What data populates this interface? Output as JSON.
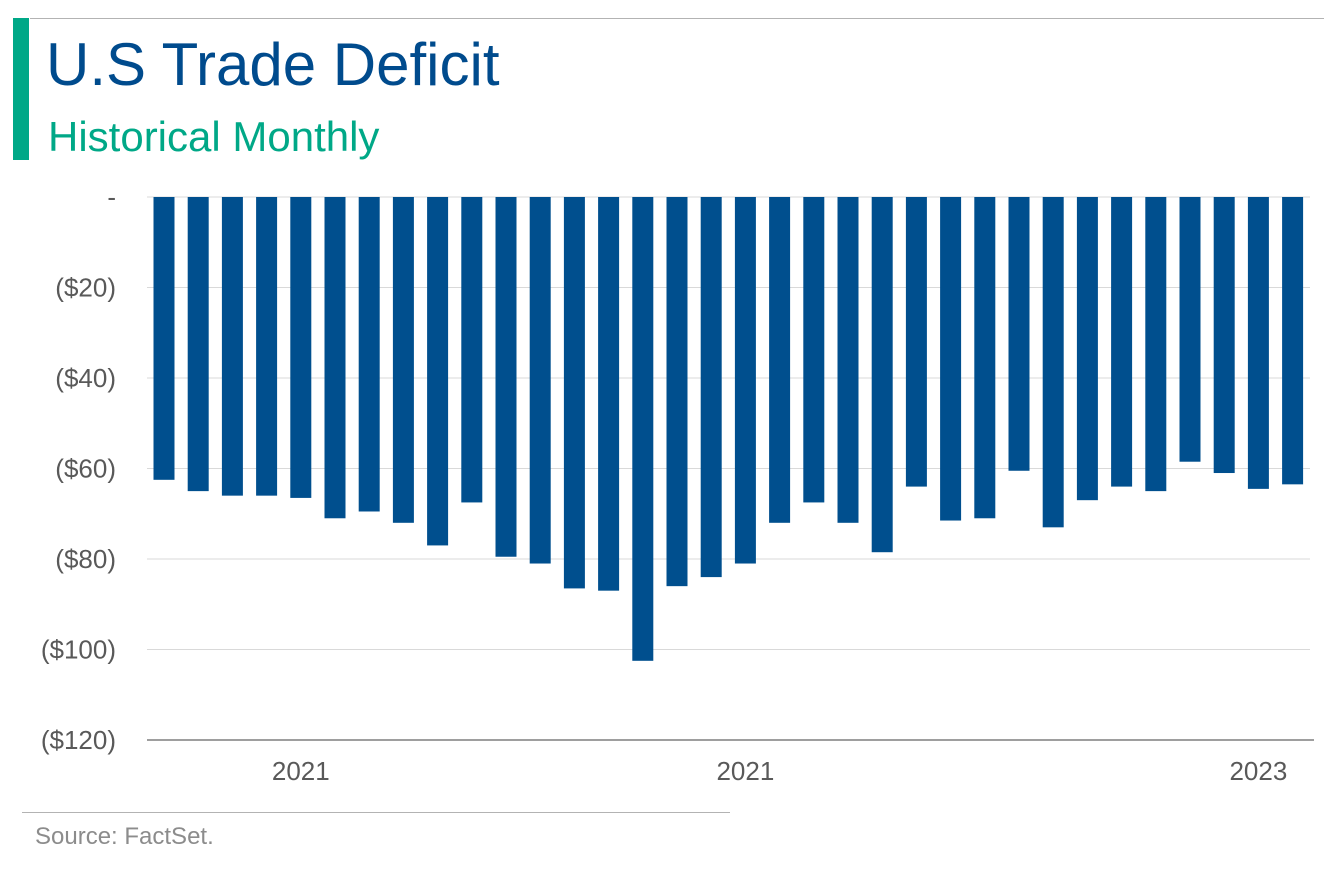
{
  "header": {
    "title": "U.S Trade Deficit",
    "subtitle": "Historical Monthly"
  },
  "footer": {
    "source": "Source: FactSet."
  },
  "colors": {
    "accent": "#00a887",
    "title": "#004b8d",
    "bar": "#004f8e",
    "grid": "#d9d9d9",
    "axis": "#7f7f7f",
    "tick_text": "#595959"
  },
  "chart_data": {
    "type": "bar",
    "title": "U.S Trade Deficit",
    "subtitle": "Historical Monthly",
    "ylim": [
      -120,
      0
    ],
    "yticks": [
      0,
      -20,
      -40,
      -60,
      -80,
      -100,
      -120
    ],
    "ytick_labels": [
      "-",
      "($20)",
      "($40)",
      "($60)",
      "($80)",
      "($100)",
      "($120)"
    ],
    "x_labels": [
      {
        "label": "2021",
        "index": 4
      },
      {
        "label": "2021",
        "index": 17
      },
      {
        "label": "2023",
        "index": 32
      }
    ],
    "grid": true,
    "legend": "none",
    "values": [
      -62.5,
      -65,
      -66,
      -66,
      -66.5,
      -71,
      -69.5,
      -72,
      -77,
      -67.5,
      -79.5,
      -81,
      -86.5,
      -87,
      -102.5,
      -86,
      -84,
      -81,
      -72,
      -67.5,
      -72,
      -78.5,
      -64,
      -71.5,
      -71,
      -60.5,
      -73,
      -67,
      -64,
      -65,
      -58.5,
      -61,
      -64.5,
      -63.5
    ]
  }
}
